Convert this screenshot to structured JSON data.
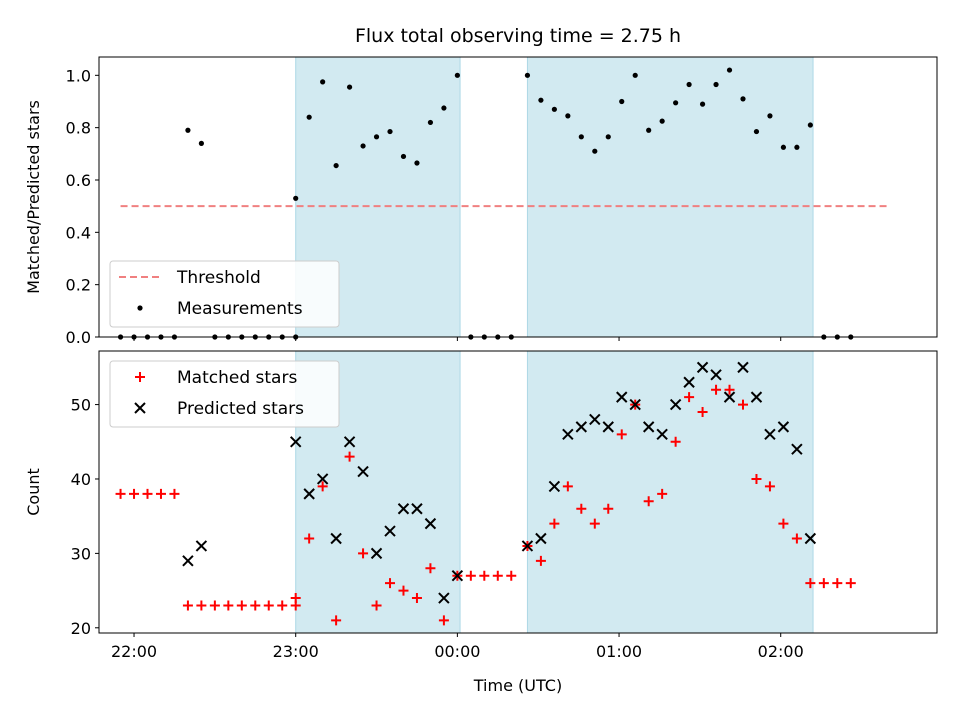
{
  "chart_data": [
    {
      "type": "scatter",
      "title": "Flux total observing time = 2.75 h",
      "xlabel": "",
      "ylabel": "Matched/Predicted stars",
      "xlim": [
        "21:47",
        "02:58"
      ],
      "ylim": [
        0,
        1.07
      ],
      "yticks": [
        "0.0",
        "0.2",
        "0.4",
        "0.6",
        "0.8",
        "1.0"
      ],
      "shaded_regions": [
        [
          "23:00",
          "00:01"
        ],
        [
          "00:26",
          "02:12"
        ]
      ],
      "shade_color": "#add8e6",
      "threshold": {
        "name": "Threshold",
        "y": 0.5,
        "x_start": "21:55",
        "x_end": "02:40",
        "color": "#f08080"
      },
      "series": [
        {
          "name": "Measurements",
          "marker": "dot",
          "color": "#000000",
          "points": [
            [
              "21:55",
              0.0
            ],
            [
              "22:00",
              0.0
            ],
            [
              "22:05",
              0.0
            ],
            [
              "22:10",
              0.0
            ],
            [
              "22:15",
              0.0
            ],
            [
              "22:20",
              0.79
            ],
            [
              "22:25",
              0.74
            ],
            [
              "22:30",
              0.0
            ],
            [
              "22:35",
              0.0
            ],
            [
              "22:40",
              0.0
            ],
            [
              "22:45",
              0.0
            ],
            [
              "22:50",
              0.0
            ],
            [
              "22:55",
              0.0
            ],
            [
              "23:00",
              0.0
            ],
            [
              "23:00",
              0.53
            ],
            [
              "23:05",
              0.84
            ],
            [
              "23:10",
              0.975
            ],
            [
              "23:15",
              0.655
            ],
            [
              "23:20",
              0.955
            ],
            [
              "23:25",
              0.73
            ],
            [
              "23:30",
              0.765
            ],
            [
              "23:35",
              0.785
            ],
            [
              "23:40",
              0.69
            ],
            [
              "23:45",
              0.665
            ],
            [
              "23:50",
              0.82
            ],
            [
              "23:55",
              0.875
            ],
            [
              "00:00",
              1.0
            ],
            [
              "00:05",
              0.0
            ],
            [
              "00:10",
              0.0
            ],
            [
              "00:15",
              0.0
            ],
            [
              "00:20",
              0.0
            ],
            [
              "00:26",
              1.0
            ],
            [
              "00:31",
              0.905
            ],
            [
              "00:36",
              0.87
            ],
            [
              "00:41",
              0.845
            ],
            [
              "00:46",
              0.765
            ],
            [
              "00:51",
              0.71
            ],
            [
              "00:56",
              0.765
            ],
            [
              "01:01",
              0.9
            ],
            [
              "01:06",
              1.0
            ],
            [
              "01:11",
              0.79
            ],
            [
              "01:16",
              0.825
            ],
            [
              "01:21",
              0.895
            ],
            [
              "01:26",
              0.965
            ],
            [
              "01:31",
              0.89
            ],
            [
              "01:36",
              0.965
            ],
            [
              "01:41",
              1.02
            ],
            [
              "01:46",
              0.91
            ],
            [
              "01:51",
              0.785
            ],
            [
              "01:56",
              0.845
            ],
            [
              "02:01",
              0.725
            ],
            [
              "02:06",
              0.725
            ],
            [
              "02:11",
              0.81
            ],
            [
              "02:16",
              0.0
            ],
            [
              "02:21",
              0.0
            ],
            [
              "02:26",
              0.0
            ]
          ]
        }
      ],
      "legend": {
        "placement": "lower-left",
        "entries": [
          "Threshold",
          "Measurements"
        ]
      }
    },
    {
      "type": "scatter",
      "title": "",
      "xlabel": "Time (UTC)",
      "ylabel": "Count",
      "xlim": [
        "21:47",
        "02:58"
      ],
      "ylim": [
        19.3,
        57.2
      ],
      "yticks": [
        "20",
        "30",
        "40",
        "50"
      ],
      "xticks": [
        "22:00",
        "23:00",
        "00:00",
        "01:00",
        "02:00"
      ],
      "shaded_regions": [
        [
          "23:00",
          "00:01"
        ],
        [
          "00:26",
          "02:12"
        ]
      ],
      "shade_color": "#add8e6",
      "series": [
        {
          "name": "Matched stars",
          "marker": "plus",
          "color": "#ff0000",
          "points": [
            [
              "21:55",
              38
            ],
            [
              "22:00",
              38
            ],
            [
              "22:05",
              38
            ],
            [
              "22:10",
              38
            ],
            [
              "22:15",
              38
            ],
            [
              "22:20",
              23
            ],
            [
              "22:25",
              23
            ],
            [
              "22:30",
              23
            ],
            [
              "22:35",
              23
            ],
            [
              "22:40",
              23
            ],
            [
              "22:45",
              23
            ],
            [
              "22:50",
              23
            ],
            [
              "22:55",
              23
            ],
            [
              "23:00",
              23
            ],
            [
              "23:00",
              24
            ],
            [
              "23:05",
              32
            ],
            [
              "23:10",
              39
            ],
            [
              "23:15",
              21
            ],
            [
              "23:20",
              43
            ],
            [
              "23:25",
              30
            ],
            [
              "23:30",
              23
            ],
            [
              "23:35",
              26
            ],
            [
              "23:40",
              25
            ],
            [
              "23:45",
              24
            ],
            [
              "23:50",
              28
            ],
            [
              "23:55",
              21
            ],
            [
              "00:00",
              27
            ],
            [
              "00:05",
              27
            ],
            [
              "00:10",
              27
            ],
            [
              "00:15",
              27
            ],
            [
              "00:20",
              27
            ],
            [
              "00:26",
              31
            ],
            [
              "00:31",
              29
            ],
            [
              "00:36",
              34
            ],
            [
              "00:41",
              39
            ],
            [
              "00:46",
              36
            ],
            [
              "00:51",
              34
            ],
            [
              "00:56",
              36
            ],
            [
              "01:01",
              46
            ],
            [
              "01:06",
              50
            ],
            [
              "01:11",
              37
            ],
            [
              "01:16",
              38
            ],
            [
              "01:21",
              45
            ],
            [
              "01:26",
              51
            ],
            [
              "01:31",
              49
            ],
            [
              "01:36",
              52
            ],
            [
              "01:41",
              52
            ],
            [
              "01:46",
              50
            ],
            [
              "01:51",
              40
            ],
            [
              "01:56",
              39
            ],
            [
              "02:01",
              34
            ],
            [
              "02:06",
              32
            ],
            [
              "02:11",
              26
            ],
            [
              "02:16",
              26
            ],
            [
              "02:21",
              26
            ],
            [
              "02:26",
              26
            ]
          ]
        },
        {
          "name": "Predicted stars",
          "marker": "x",
          "color": "#000000",
          "points": [
            [
              "22:20",
              29
            ],
            [
              "22:25",
              31
            ],
            [
              "23:00",
              45
            ],
            [
              "23:05",
              38
            ],
            [
              "23:10",
              40
            ],
            [
              "23:15",
              32
            ],
            [
              "23:20",
              45
            ],
            [
              "23:25",
              41
            ],
            [
              "23:30",
              30
            ],
            [
              "23:35",
              33
            ],
            [
              "23:40",
              36
            ],
            [
              "23:45",
              36
            ],
            [
              "23:50",
              34
            ],
            [
              "23:55",
              24
            ],
            [
              "00:00",
              27
            ],
            [
              "00:26",
              31
            ],
            [
              "00:31",
              32
            ],
            [
              "00:36",
              39
            ],
            [
              "00:41",
              46
            ],
            [
              "00:46",
              47
            ],
            [
              "00:51",
              48
            ],
            [
              "00:56",
              47
            ],
            [
              "01:01",
              51
            ],
            [
              "01:06",
              50
            ],
            [
              "01:11",
              47
            ],
            [
              "01:16",
              46
            ],
            [
              "01:21",
              50
            ],
            [
              "01:26",
              53
            ],
            [
              "01:31",
              55
            ],
            [
              "01:36",
              54
            ],
            [
              "01:41",
              51
            ],
            [
              "01:46",
              55
            ],
            [
              "01:51",
              51
            ],
            [
              "01:56",
              46
            ],
            [
              "02:01",
              47
            ],
            [
              "02:06",
              44
            ],
            [
              "02:11",
              32
            ]
          ]
        }
      ],
      "legend": {
        "placement": "upper-left",
        "entries": [
          "Matched stars",
          "Predicted stars"
        ]
      }
    }
  ]
}
